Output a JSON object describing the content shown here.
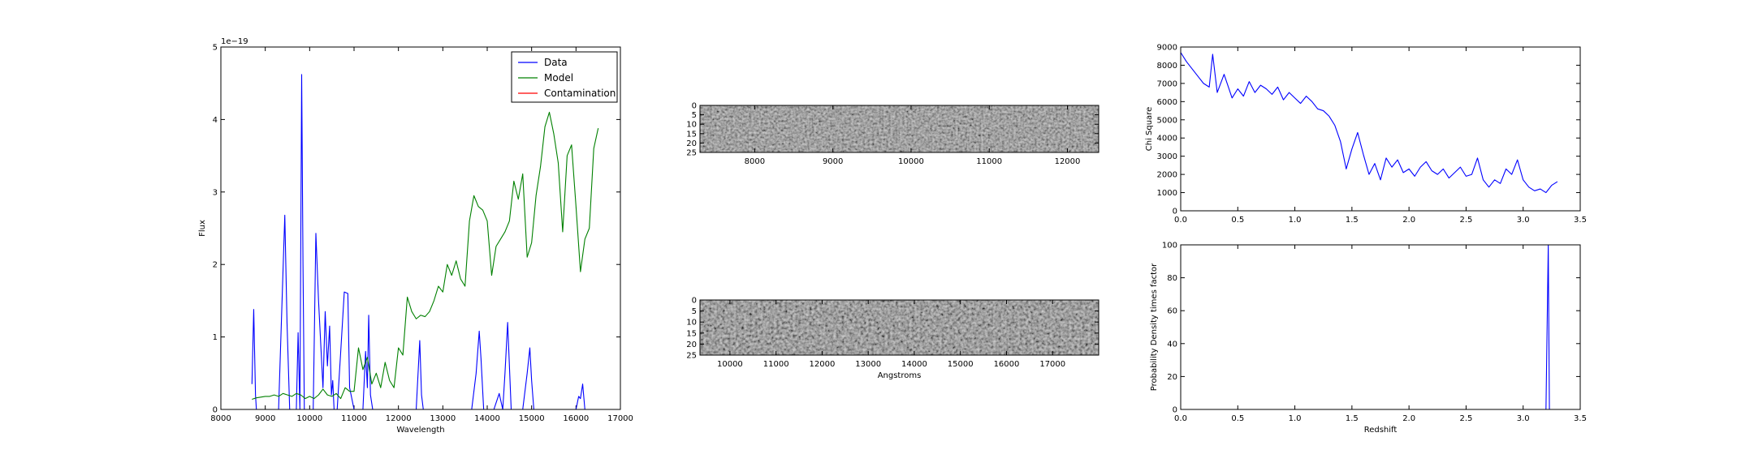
{
  "chart_data": [
    {
      "id": "spectrum",
      "type": "line",
      "xlabel": "Wavelength",
      "ylabel": "Flux",
      "scale_label": "1e−19",
      "xlim": [
        8000,
        17000
      ],
      "ylim": [
        0,
        5
      ],
      "xticks": [
        8000,
        9000,
        10000,
        11000,
        12000,
        13000,
        14000,
        15000,
        16000,
        17000
      ],
      "yticks": [
        0,
        1,
        2,
        3,
        4,
        5
      ],
      "legend_position": "top-right",
      "series": [
        {
          "name": "Data",
          "color": "#0000ff",
          "x": [
            8700,
            8740,
            8780,
            8800,
            9300,
            9440,
            9490,
            9550,
            9700,
            9740,
            9780,
            9820,
            9850,
            9880,
            9950,
            10000,
            10080,
            10140,
            10200,
            10300,
            10350,
            10400,
            10450,
            10490,
            10520,
            10550,
            10620,
            10700,
            10780,
            10860,
            10900,
            11000,
            11200,
            11260,
            11300,
            11330,
            11370,
            11420,
            11500,
            12200,
            12400,
            12480,
            12520,
            12560,
            13650,
            13750,
            13820,
            13860,
            13920,
            14150,
            14270,
            14350,
            14400,
            14460,
            14540,
            14800,
            14900,
            14960,
            15000,
            15050,
            15500,
            16000,
            16060,
            16100,
            16150,
            16200,
            16500
          ],
          "values": [
            0.35,
            1.38,
            0.2,
            0,
            0,
            2.68,
            1.2,
            0,
            0,
            1.06,
            0,
            4.62,
            2.0,
            0,
            0,
            0,
            0,
            2.43,
            1.5,
            0.3,
            1.35,
            0.6,
            1.15,
            0.2,
            0.4,
            0,
            0,
            0.8,
            1.62,
            1.6,
            0.3,
            0,
            0,
            0.8,
            0.3,
            1.3,
            0.2,
            0,
            0,
            0,
            0,
            0.95,
            0.2,
            0,
            0,
            0.5,
            1.08,
            0.7,
            0,
            0,
            0.22,
            0,
            0.5,
            1.2,
            0,
            0,
            0.5,
            0.85,
            0.4,
            0,
            0,
            0,
            0.18,
            0.15,
            0.35,
            0,
            0
          ]
        },
        {
          "name": "Model",
          "color": "#008000",
          "x": [
            8700,
            8800,
            8900,
            9000,
            9100,
            9200,
            9300,
            9400,
            9500,
            9600,
            9700,
            9800,
            9900,
            10000,
            10100,
            10200,
            10300,
            10400,
            10500,
            10600,
            10700,
            10800,
            10900,
            11000,
            11100,
            11200,
            11300,
            11400,
            11500,
            11600,
            11700,
            11800,
            11900,
            12000,
            12100,
            12200,
            12300,
            12400,
            12500,
            12600,
            12700,
            12800,
            12900,
            13000,
            13100,
            13200,
            13300,
            13400,
            13500,
            13600,
            13700,
            13800,
            13900,
            14000,
            14100,
            14200,
            14300,
            14400,
            14500,
            14600,
            14700,
            14800,
            14900,
            15000,
            15100,
            15200,
            15300,
            15400,
            15500,
            15600,
            15700,
            15800,
            15900,
            16000,
            16100,
            16200,
            16300,
            16400,
            16500
          ],
          "values": [
            0.14,
            0.16,
            0.17,
            0.18,
            0.18,
            0.2,
            0.18,
            0.22,
            0.2,
            0.18,
            0.22,
            0.2,
            0.15,
            0.18,
            0.15,
            0.2,
            0.28,
            0.2,
            0.18,
            0.22,
            0.15,
            0.3,
            0.25,
            0.25,
            0.85,
            0.55,
            0.72,
            0.35,
            0.5,
            0.3,
            0.65,
            0.4,
            0.3,
            0.85,
            0.75,
            1.55,
            1.35,
            1.25,
            1.3,
            1.28,
            1.35,
            1.5,
            1.7,
            1.62,
            2.0,
            1.85,
            2.05,
            1.8,
            1.7,
            2.6,
            2.95,
            2.8,
            2.75,
            2.6,
            1.85,
            2.25,
            2.35,
            2.45,
            2.6,
            3.15,
            2.9,
            3.25,
            2.1,
            2.3,
            2.95,
            3.35,
            3.9,
            4.1,
            3.8,
            3.4,
            2.45,
            3.5,
            3.65,
            2.8,
            1.9,
            2.35,
            2.5,
            3.6,
            3.88
          ]
        },
        {
          "name": "Contamination",
          "color": "#ff0000",
          "x": [
            8700,
            16500
          ],
          "values": [
            0,
            0
          ]
        }
      ]
    },
    {
      "id": "image1",
      "type": "heatmap",
      "colormap": "gray",
      "xlim": [
        7300,
        12400
      ],
      "ylim": [
        0,
        25
      ],
      "xticks": [
        8000,
        9000,
        10000,
        11000,
        12000
      ],
      "yticks": [
        0,
        5,
        10,
        15,
        20,
        25
      ]
    },
    {
      "id": "image2",
      "type": "heatmap",
      "colormap": "gray",
      "xlabel": "Angstroms",
      "xlim": [
        9350,
        18000
      ],
      "ylim": [
        0,
        25
      ],
      "xticks": [
        10000,
        11000,
        12000,
        13000,
        14000,
        15000,
        16000,
        17000
      ],
      "yticks": [
        0,
        5,
        10,
        15,
        20,
        25
      ]
    },
    {
      "id": "chisquare",
      "type": "line",
      "ylabel": "Chi Square",
      "xlim": [
        0,
        3.5
      ],
      "ylim": [
        0,
        9000
      ],
      "xticks": [
        0.0,
        0.5,
        1.0,
        1.5,
        2.0,
        2.5,
        3.0,
        3.5
      ],
      "yticks": [
        0,
        1000,
        2000,
        3000,
        4000,
        5000,
        6000,
        7000,
        8000,
        9000
      ],
      "series": [
        {
          "color": "#0000ff",
          "x": [
            0.0,
            0.05,
            0.1,
            0.15,
            0.2,
            0.25,
            0.28,
            0.32,
            0.38,
            0.45,
            0.5,
            0.55,
            0.6,
            0.65,
            0.7,
            0.75,
            0.8,
            0.85,
            0.9,
            0.95,
            1.0,
            1.05,
            1.1,
            1.15,
            1.2,
            1.25,
            1.3,
            1.35,
            1.4,
            1.45,
            1.5,
            1.55,
            1.6,
            1.65,
            1.7,
            1.75,
            1.8,
            1.85,
            1.9,
            1.95,
            2.0,
            2.05,
            2.1,
            2.15,
            2.2,
            2.25,
            2.3,
            2.35,
            2.4,
            2.45,
            2.5,
            2.55,
            2.6,
            2.65,
            2.7,
            2.75,
            2.8,
            2.85,
            2.9,
            2.95,
            3.0,
            3.05,
            3.1,
            3.15,
            3.2,
            3.25,
            3.3
          ],
          "values": [
            8700,
            8200,
            7800,
            7400,
            7000,
            6800,
            8600,
            6500,
            7500,
            6200,
            6700,
            6300,
            7100,
            6500,
            6900,
            6700,
            6400,
            6800,
            6100,
            6500,
            6200,
            5900,
            6300,
            6000,
            5600,
            5500,
            5200,
            4700,
            3800,
            2300,
            3400,
            4300,
            3100,
            2000,
            2600,
            1700,
            2900,
            2400,
            2800,
            2100,
            2300,
            1900,
            2400,
            2700,
            2200,
            2000,
            2300,
            1800,
            2100,
            2400,
            1900,
            2000,
            2900,
            1700,
            1300,
            1700,
            1500,
            2300,
            2000,
            2800,
            1700,
            1300,
            1100,
            1200,
            1000,
            1400,
            1600
          ]
        }
      ]
    },
    {
      "id": "pdf",
      "type": "line",
      "xlabel": "Redshift",
      "ylabel": "Probability Density times factor",
      "xlim": [
        0,
        3.5
      ],
      "ylim": [
        0,
        100
      ],
      "xticks": [
        0.0,
        0.5,
        1.0,
        1.5,
        2.0,
        2.5,
        3.0,
        3.5
      ],
      "yticks": [
        0,
        20,
        40,
        60,
        80,
        100
      ],
      "series": [
        {
          "color": "#0000ff",
          "x": [
            0.0,
            3.2,
            3.21,
            3.22,
            3.23,
            3.3
          ],
          "values": [
            0,
            0,
            50,
            100,
            0,
            0
          ]
        }
      ]
    }
  ]
}
